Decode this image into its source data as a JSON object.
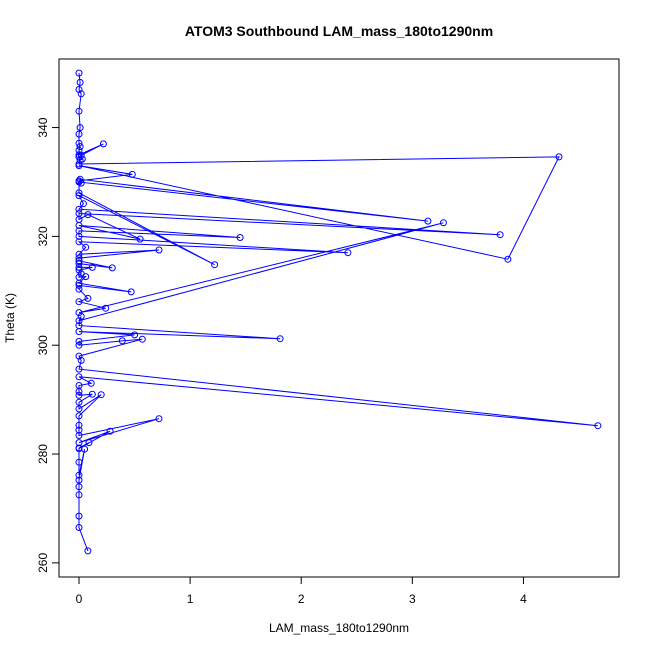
{
  "chart_data": {
    "type": "line",
    "title": "ATOM3 Southbound LAM_mass_180to1290nm",
    "xlabel": "LAM_mass_180to1290nm",
    "ylabel": "Theta (K)",
    "xlim": [
      -0.18,
      4.86
    ],
    "ylim": [
      257.4,
      352.6
    ],
    "x_ticks": [
      0,
      1,
      2,
      3,
      4
    ],
    "y_ticks": [
      260,
      280,
      300,
      320,
      340
    ],
    "x_tick_labels": [
      "0",
      "1",
      "2",
      "3",
      "4"
    ],
    "y_tick_labels": [
      "260",
      "280",
      "300",
      "320",
      "340"
    ],
    "grid": false,
    "marker": "open-circle",
    "color": "#0000ff",
    "series": [
      {
        "x": [
          0.0,
          0.01,
          0.0,
          0.02,
          0.0,
          0.01,
          0.0,
          0.0,
          0.01,
          0.0,
          0.0,
          0.22,
          0.02,
          0.0,
          0.03,
          0.01,
          0.0,
          4.32,
          3.86,
          0.0,
          0.48,
          0.0,
          0.02,
          0.01,
          3.14,
          0.0,
          0.0,
          1.22,
          0.0,
          0.04,
          0.0,
          3.79,
          0.0,
          0.0,
          0.08,
          0.55,
          0.0,
          1.45,
          0.0,
          0.0,
          2.42,
          0.0,
          0.06,
          0.0,
          0.72,
          0.0,
          0.0,
          0.3,
          0.0,
          0.0,
          0.12,
          0.0,
          0.02,
          0.0,
          0.06,
          0.0,
          0.47,
          0.0,
          0.0,
          0.08,
          0.0,
          0.24,
          0.0,
          3.28,
          0.0,
          0.02,
          0.0,
          1.81,
          0.0,
          0.5,
          0.0,
          0.0,
          0.39,
          0.57,
          0.0,
          0.02,
          0.0,
          4.67,
          0.0,
          0.11,
          0.0,
          0.0,
          0.0,
          0.12,
          0.0,
          0.0,
          0.2,
          0.0,
          0.0,
          0.0,
          0.0,
          0.72,
          0.0,
          0.28,
          0.0,
          0.09,
          0.0,
          0.0,
          0.0,
          0.05,
          0.0,
          0.0,
          0.0,
          0.0,
          0.0,
          0.08
        ],
        "y": [
          350.0,
          348.3,
          347.0,
          346.2,
          343.0,
          340.0,
          338.8,
          337.1,
          336.5,
          335.8,
          335.0,
          337.0,
          334.9,
          334.6,
          334.2,
          334.0,
          333.3,
          334.6,
          315.8,
          333.0,
          331.4,
          330.2,
          329.8,
          330.5,
          322.8,
          330.0,
          328.0,
          314.8,
          327.5,
          326.0,
          325.0,
          320.3,
          324.2,
          323.1,
          324.0,
          319.5,
          322.0,
          319.8,
          321.0,
          320.0,
          317.0,
          319.0,
          318.0,
          316.7,
          317.5,
          316.0,
          315.5,
          314.2,
          315.0,
          314.3,
          314.3,
          313.8,
          313.1,
          312.5,
          312.6,
          311.4,
          309.8,
          311.0,
          310.3,
          308.6,
          308.0,
          306.8,
          306.0,
          322.5,
          304.5,
          305.3,
          303.6,
          301.2,
          302.5,
          301.9,
          300.7,
          300.0,
          300.8,
          301.1,
          298.0,
          297.2,
          295.6,
          285.2,
          294.2,
          293.0,
          292.6,
          291.5,
          290.8,
          291.0,
          289.5,
          288.3,
          290.9,
          287.0,
          285.3,
          284.4,
          283.4,
          286.5,
          282.1,
          284.2,
          281.0,
          282.1,
          281.1,
          278.5,
          276.1,
          280.9,
          275.2,
          274.0,
          272.5,
          268.6,
          266.5,
          262.2
        ]
      }
    ]
  }
}
